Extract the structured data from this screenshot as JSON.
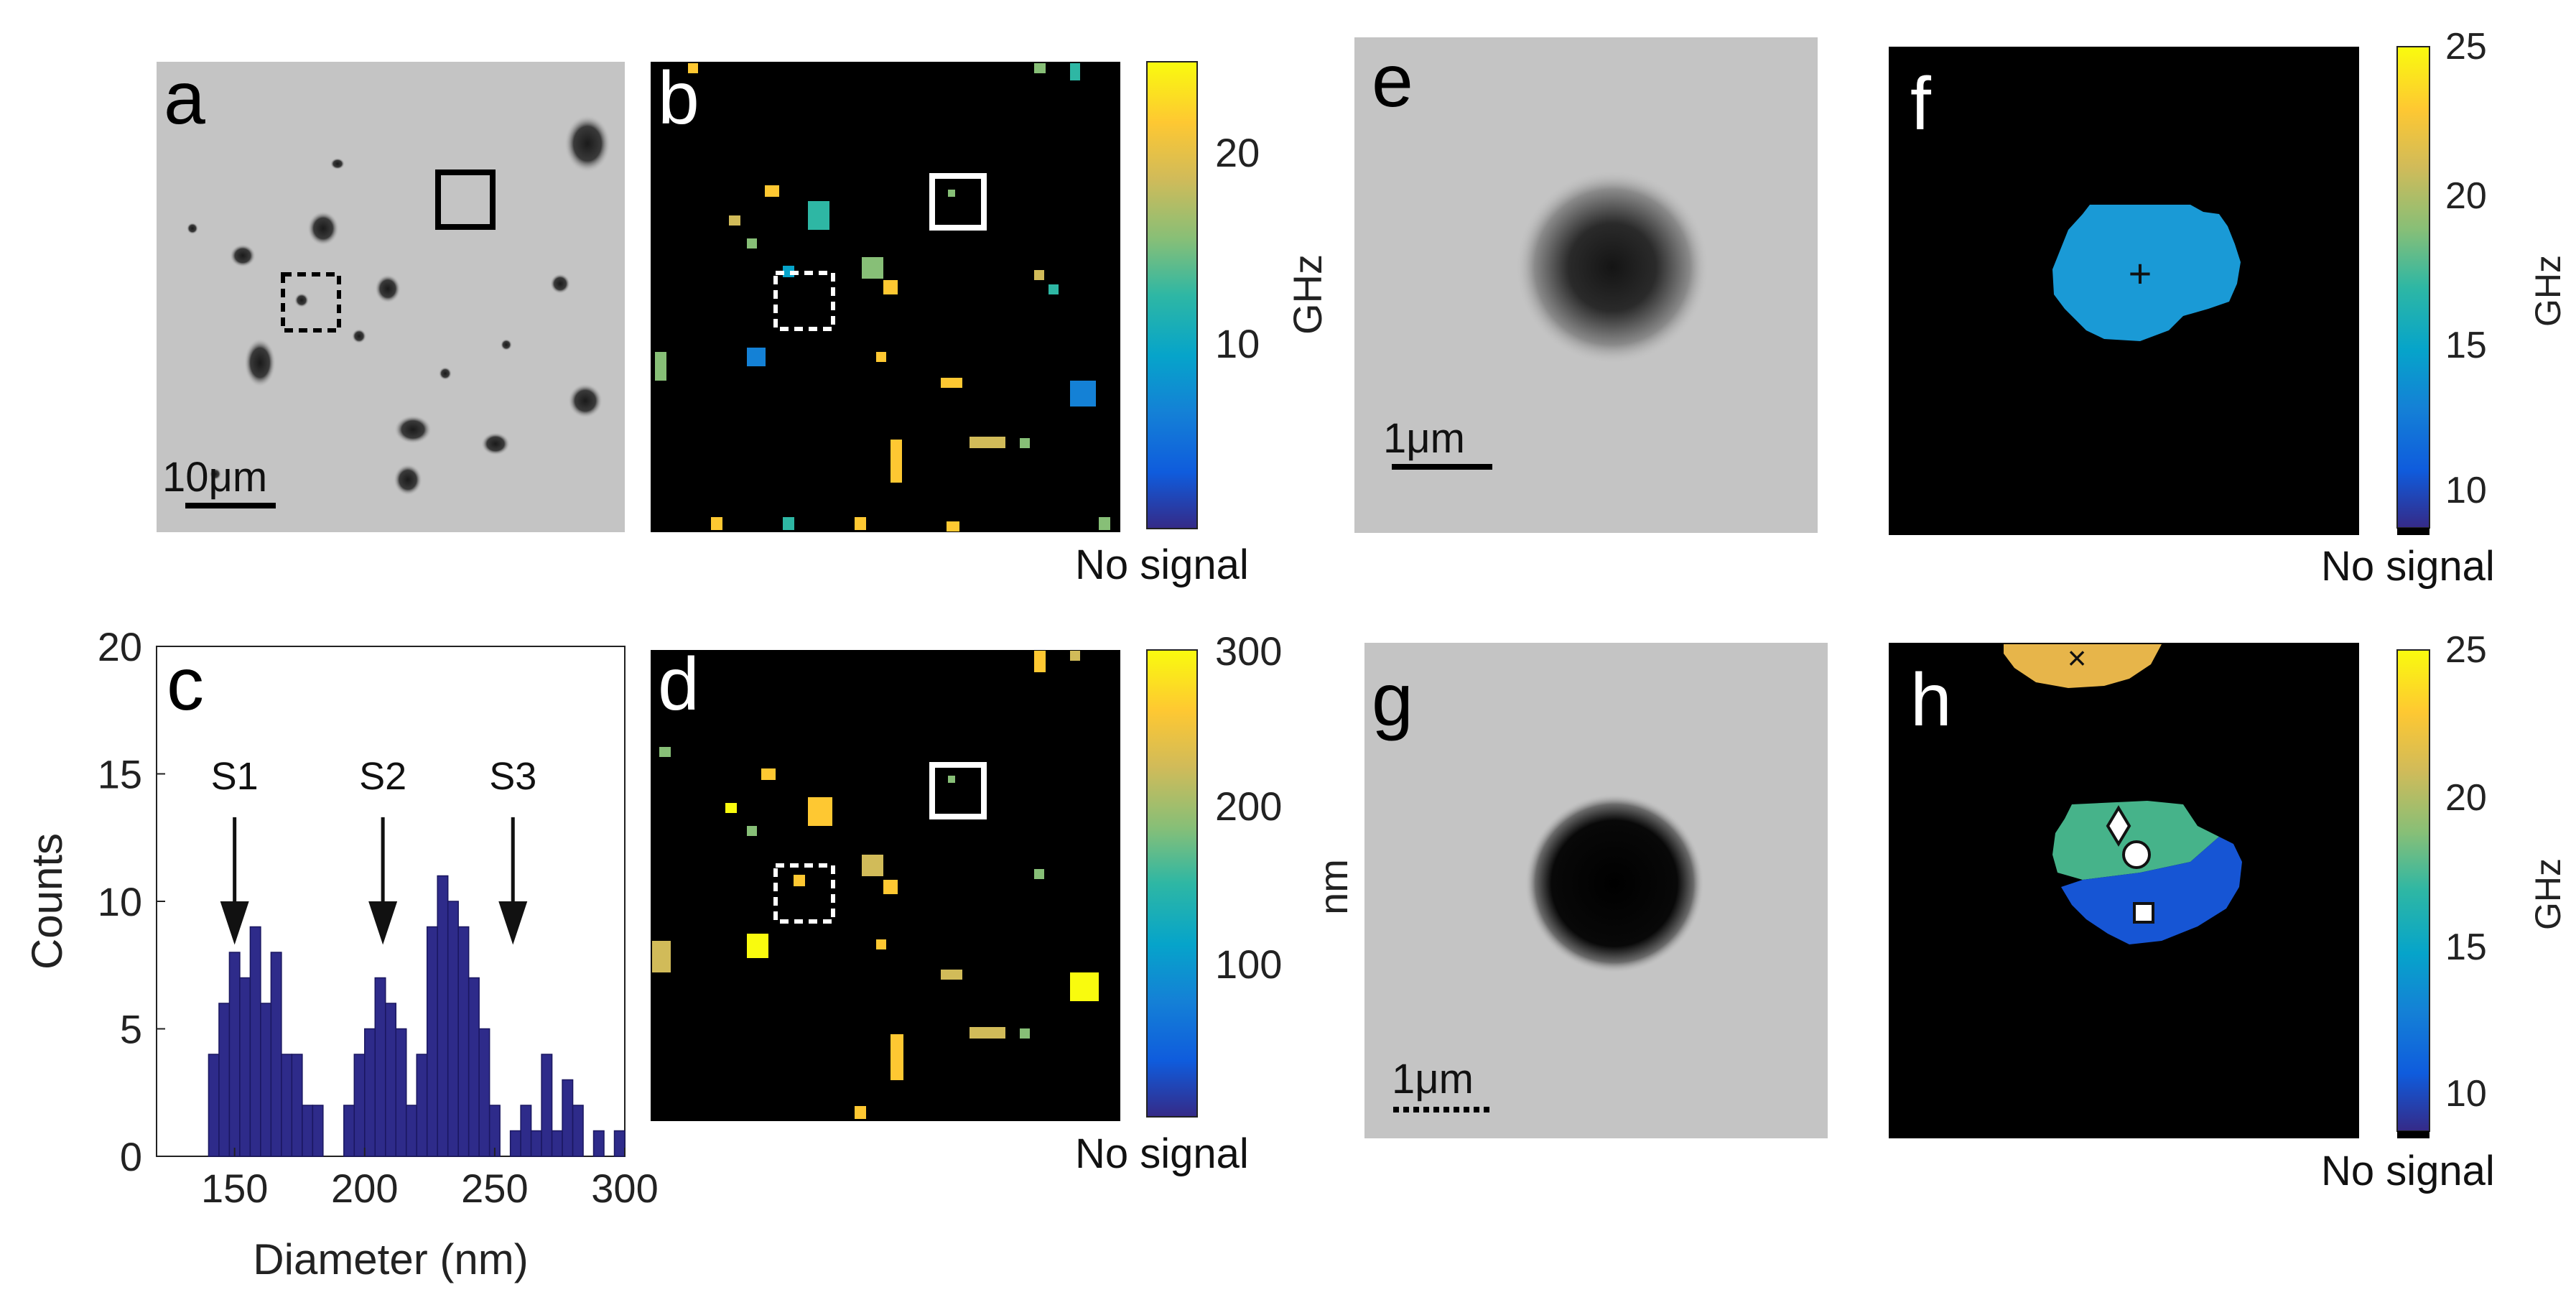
{
  "panel_letters": [
    "a",
    "b",
    "c",
    "d",
    "e",
    "f",
    "g",
    "h"
  ],
  "scale_bars": {
    "a": "10μm",
    "e": "1μm",
    "g": "1μm"
  },
  "colorbars": {
    "b": {
      "unit": "GHz",
      "ticks": [
        "10",
        "20"
      ],
      "footer": "No signal",
      "range": [
        0,
        25
      ]
    },
    "d": {
      "unit": "nm",
      "ticks": [
        "100",
        "200",
        "300"
      ],
      "footer": "No signal",
      "range": [
        0,
        300
      ]
    },
    "f": {
      "unit": "GHz",
      "ticks": [
        "10",
        "15",
        "20",
        "25"
      ],
      "footer": "No signal",
      "range": [
        8.5,
        25
      ]
    },
    "h": {
      "unit": "GHz",
      "ticks": [
        "10",
        "15",
        "20",
        "25"
      ],
      "footer": "No signal",
      "range": [
        8.5,
        25
      ]
    }
  },
  "colors": {
    "map_background": "#000000",
    "sem_background": "#c4c4c4",
    "histogram_bar": "#2e2b8a",
    "f_region": "#1a9ad6",
    "h_upper_region": "#e7b54a",
    "h_green_region": "#46b38a",
    "h_blue_region": "#1655d4"
  },
  "chart_data": {
    "type": "bar",
    "title": "",
    "xlabel": "Diameter (nm)",
    "ylabel": "Counts",
    "xlim": [
      120,
      300
    ],
    "ylim": [
      0,
      20
    ],
    "xticks": [
      "150",
      "200",
      "250",
      "300"
    ],
    "yticks": [
      "0",
      "5",
      "10",
      "15",
      "20"
    ],
    "bin_width_nm": 4,
    "x": [
      142,
      146,
      150,
      154,
      158,
      162,
      166,
      170,
      174,
      178,
      182,
      186,
      190,
      194,
      198,
      202,
      206,
      210,
      214,
      218,
      222,
      226,
      230,
      234,
      238,
      242,
      246,
      250,
      254,
      258,
      262,
      266,
      270,
      274,
      278,
      282,
      286,
      290,
      294,
      298
    ],
    "values": [
      4,
      6,
      8,
      7,
      9,
      6,
      8,
      4,
      4,
      2,
      2,
      0,
      0,
      2,
      4,
      5,
      7,
      6,
      5,
      2,
      4,
      9,
      11,
      10,
      9,
      7,
      5,
      2,
      0,
      1,
      2,
      1,
      4,
      1,
      3,
      2,
      0,
      1,
      0,
      1
    ],
    "annotations": [
      {
        "label": "S1",
        "x": 150
      },
      {
        "label": "S2",
        "x": 207
      },
      {
        "label": "S3",
        "x": 257
      }
    ],
    "grid": false
  }
}
